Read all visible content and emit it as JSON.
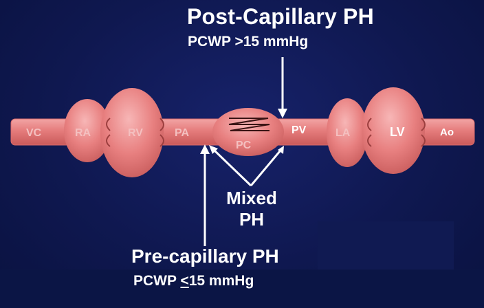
{
  "titles": {
    "post_capillary": "Post-Capillary PH",
    "post_criterion": "PCWP >15 mmHg",
    "mixed_line1": "Mixed",
    "mixed_line2": "PH",
    "pre_capillary": "Pre-capillary PH",
    "pre_criterion_prefix": "PCWP ",
    "pre_criterion_symbol": "<",
    "pre_criterion_suffix": "15 mmHg"
  },
  "circulation_labels": {
    "vc": "VC",
    "ra": "RA",
    "rv": "RV",
    "pa": "PA",
    "pc": "PC",
    "pv": "PV",
    "la": "LA",
    "lv": "LV",
    "ao": "Ao"
  },
  "colors": {
    "background": "#111a55",
    "vessel": "#e87a7a",
    "text": "#ffffff"
  }
}
